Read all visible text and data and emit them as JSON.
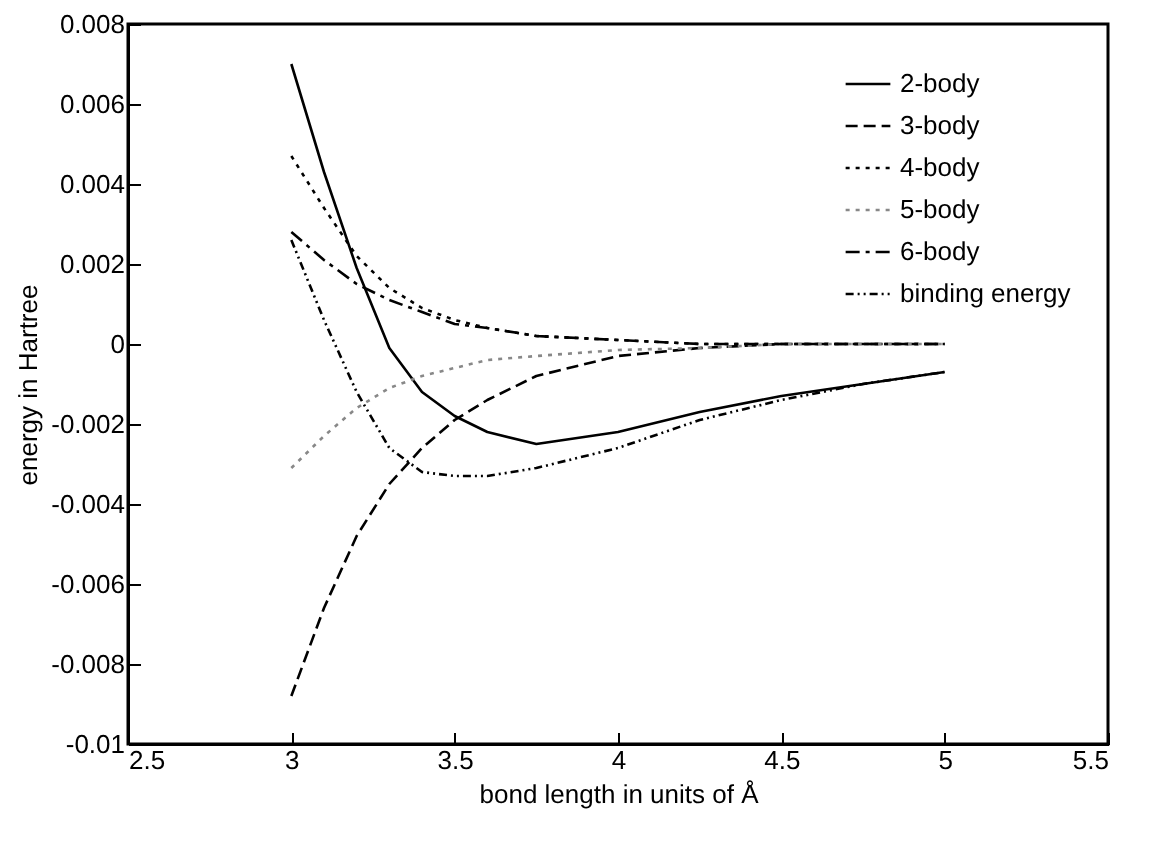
{
  "chart_data": {
    "type": "line",
    "xlabel": "bond length in units of Å",
    "ylabel": "energy in Hartree",
    "x": [
      3,
      3.1,
      3.2,
      3.3,
      3.4,
      3.5,
      3.6,
      3.75,
      4,
      4.25,
      4.5,
      4.75,
      5
    ],
    "series": [
      {
        "name": "2-body",
        "color": "#000000",
        "line_style": "solid",
        "values": [
          0.007,
          0.0043,
          0.0019,
          -0.0001,
          -0.0012,
          -0.0018,
          -0.0022,
          -0.0025,
          -0.0022,
          -0.0017,
          -0.0013,
          -0.001,
          -0.0007
        ]
      },
      {
        "name": "3-body",
        "color": "#000000",
        "line_style": "dashed",
        "values": [
          -0.0088,
          -0.0066,
          -0.0048,
          -0.0035,
          -0.0026,
          -0.0019,
          -0.0014,
          -0.0008,
          -0.0003,
          -0.0001,
          0,
          0,
          0
        ]
      },
      {
        "name": "4-body",
        "color": "#000000",
        "line_style": "dotted",
        "values": [
          0.0047,
          0.0034,
          0.0022,
          0.0014,
          0.0009,
          0.0006,
          0.0004,
          0.0002,
          0.0001,
          0,
          0,
          0,
          0
        ]
      },
      {
        "name": "5-body",
        "color": "#888888",
        "line_style": "dotted",
        "values": [
          -0.0031,
          -0.0023,
          -0.0016,
          -0.0011,
          -0.0008,
          -0.0006,
          -0.0004,
          -0.0003,
          -0.00015,
          -0.0001,
          0,
          0,
          0
        ]
      },
      {
        "name": "6-body",
        "color": "#000000",
        "line_style": "dashdot",
        "values": [
          0.0028,
          0.0021,
          0.0015,
          0.0011,
          0.0008,
          0.0005,
          0.0004,
          0.0002,
          0.0001,
          0,
          0,
          0,
          0
        ]
      },
      {
        "name": "binding energy",
        "color": "#000000",
        "line_style": "dashdotdot",
        "values": [
          0.0026,
          0.0006,
          -0.0012,
          -0.0026,
          -0.0032,
          -0.0033,
          -0.0033,
          -0.0031,
          -0.0026,
          -0.0019,
          -0.0014,
          -0.001,
          -0.0007
        ]
      }
    ],
    "xlim": [
      2.5,
      5.5
    ],
    "xticks": [
      2.5,
      3,
      3.5,
      4,
      4.5,
      5,
      5.5
    ],
    "ylim": [
      -0.01,
      0.008
    ],
    "yticks": [
      -0.01,
      -0.008,
      -0.006,
      -0.004,
      -0.002,
      0,
      0.002,
      0.004,
      0.006,
      0.008
    ],
    "legend": "top right"
  }
}
